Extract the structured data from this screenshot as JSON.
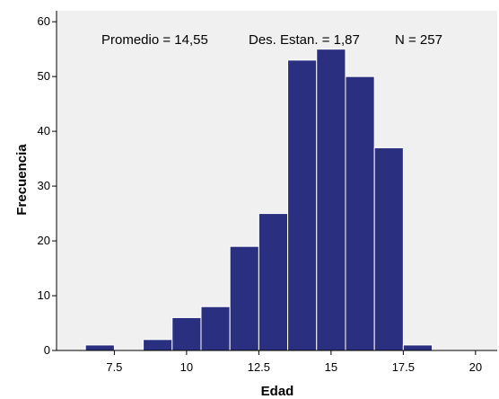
{
  "chart_data": {
    "type": "bar",
    "subtype": "histogram",
    "bin_width": 1,
    "bins": [
      {
        "center": 7,
        "count": 1
      },
      {
        "center": 8,
        "count": 0
      },
      {
        "center": 9,
        "count": 2
      },
      {
        "center": 10,
        "count": 6
      },
      {
        "center": 11,
        "count": 8
      },
      {
        "center": 12,
        "count": 19
      },
      {
        "center": 13,
        "count": 25
      },
      {
        "center": 14,
        "count": 53
      },
      {
        "center": 15,
        "count": 55
      },
      {
        "center": 16,
        "count": 50
      },
      {
        "center": 17,
        "count": 37
      },
      {
        "center": 18,
        "count": 1
      }
    ],
    "xlabel": "Edad",
    "ylabel": "Frecuencia",
    "xlim": [
      5.5,
      20.75
    ],
    "ylim": [
      0,
      62
    ],
    "xticks": [
      7.5,
      10,
      12.5,
      15,
      17.5,
      20
    ],
    "xtick_labels": [
      "7.5",
      "10",
      "12.5",
      "15",
      "17.5",
      "20"
    ],
    "yticks": [
      0,
      10,
      20,
      30,
      40,
      50,
      60
    ],
    "ytick_labels": [
      "0",
      "10",
      "20",
      "30",
      "40",
      "50",
      "60"
    ],
    "annotations": {
      "mean": "Promedio = 14,55",
      "std": "Des. Estan. = 1,87",
      "n": "N = 257"
    },
    "grid": false,
    "colors": {
      "bar_fill": "#2b2f7f",
      "bar_edge": "#ffffff",
      "plot_background": "#f0f0f0",
      "frame": "#000000"
    }
  }
}
